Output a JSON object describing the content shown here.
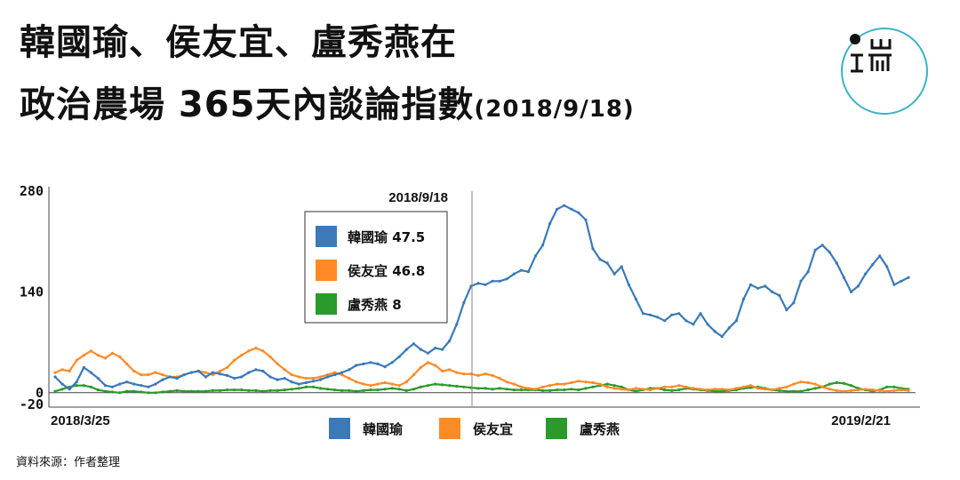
{
  "title": {
    "line1": "韓國瑜、侯友宜、盧秀燕在",
    "line2": "政治農場 365天內談論指數",
    "date": "(2018/9/18)"
  },
  "source": "資料來源：作者整理",
  "chart_data": {
    "type": "line",
    "ylim": [
      -20,
      280
    ],
    "yticks": [
      280,
      140,
      0,
      -20
    ],
    "x_start_label": "2018/3/25",
    "x_end_label": "2019/2/21",
    "marker": {
      "label": "2018/9/18"
    },
    "tooltip": {
      "rows": [
        {
          "name": "韓國瑜",
          "value": "47.5",
          "color": "#3a7ab8"
        },
        {
          "name": "侯友宜",
          "value": "46.8",
          "color": "#ff8a26"
        },
        {
          "name": "盧秀燕",
          "value": "8",
          "color": "#2a9a2a"
        }
      ]
    },
    "series": [
      {
        "name": "韓國瑜",
        "color": "#3a7ab8",
        "values": [
          22,
          12,
          5,
          15,
          35,
          28,
          20,
          10,
          8,
          12,
          15,
          12,
          10,
          8,
          12,
          18,
          22,
          20,
          25,
          28,
          30,
          22,
          28,
          26,
          24,
          20,
          22,
          28,
          32,
          30,
          22,
          18,
          20,
          15,
          12,
          14,
          16,
          18,
          22,
          25,
          28,
          32,
          38,
          40,
          42,
          40,
          36,
          42,
          50,
          60,
          68,
          60,
          55,
          62,
          60,
          72,
          95,
          125,
          148,
          152,
          150,
          155,
          155,
          158,
          165,
          170,
          168,
          190,
          205,
          235,
          255,
          260,
          255,
          250,
          240,
          200,
          185,
          180,
          165,
          175,
          150,
          130,
          110,
          108,
          105,
          100,
          108,
          110,
          100,
          95,
          110,
          95,
          85,
          78,
          90,
          100,
          130,
          150,
          145,
          148,
          140,
          135,
          115,
          125,
          155,
          168,
          198,
          205,
          195,
          180,
          160,
          140,
          148,
          165,
          178,
          190,
          175,
          150,
          155,
          160
        ]
      },
      {
        "name": "侯友宜",
        "color": "#ff8a26",
        "values": [
          28,
          32,
          30,
          45,
          52,
          58,
          52,
          48,
          55,
          50,
          40,
          30,
          25,
          25,
          28,
          25,
          22,
          22,
          25,
          28,
          30,
          28,
          25,
          30,
          35,
          45,
          52,
          58,
          62,
          58,
          50,
          40,
          32,
          25,
          22,
          20,
          20,
          22,
          25,
          28,
          25,
          20,
          15,
          12,
          10,
          12,
          14,
          12,
          10,
          15,
          25,
          35,
          42,
          38,
          30,
          32,
          28,
          26,
          26,
          24,
          26,
          24,
          20,
          15,
          12,
          8,
          6,
          5,
          8,
          10,
          12,
          12,
          14,
          16,
          15,
          14,
          12,
          8,
          6,
          5,
          4,
          6,
          5,
          4,
          6,
          8,
          8,
          10,
          8,
          6,
          5,
          4,
          5,
          5,
          4,
          6,
          8,
          10,
          6,
          5,
          4,
          6,
          8,
          12,
          15,
          14,
          12,
          8,
          5,
          3,
          2,
          3,
          4,
          5,
          4,
          3,
          2,
          3,
          4,
          3
        ]
      },
      {
        "name": "盧秀燕",
        "color": "#2a9a2a",
        "values": [
          2,
          5,
          8,
          10,
          10,
          8,
          4,
          2,
          1,
          0,
          2,
          2,
          1,
          0,
          0,
          1,
          2,
          3,
          2,
          2,
          2,
          2,
          3,
          3,
          4,
          4,
          4,
          3,
          3,
          2,
          3,
          3,
          4,
          5,
          6,
          8,
          8,
          6,
          5,
          4,
          3,
          3,
          2,
          3,
          4,
          4,
          5,
          6,
          5,
          3,
          5,
          8,
          10,
          12,
          11,
          10,
          9,
          8,
          7,
          6,
          6,
          5,
          6,
          5,
          4,
          4,
          4,
          4,
          3,
          3,
          4,
          4,
          5,
          4,
          6,
          8,
          10,
          12,
          10,
          8,
          4,
          2,
          4,
          6,
          6,
          4,
          3,
          4,
          6,
          5,
          4,
          3,
          2,
          2,
          3,
          4,
          6,
          7,
          8,
          6,
          4,
          3,
          2,
          2,
          2,
          4,
          6,
          8,
          12,
          14,
          13,
          10,
          6,
          4,
          2,
          4,
          8,
          8,
          6,
          5
        ]
      }
    ]
  }
}
